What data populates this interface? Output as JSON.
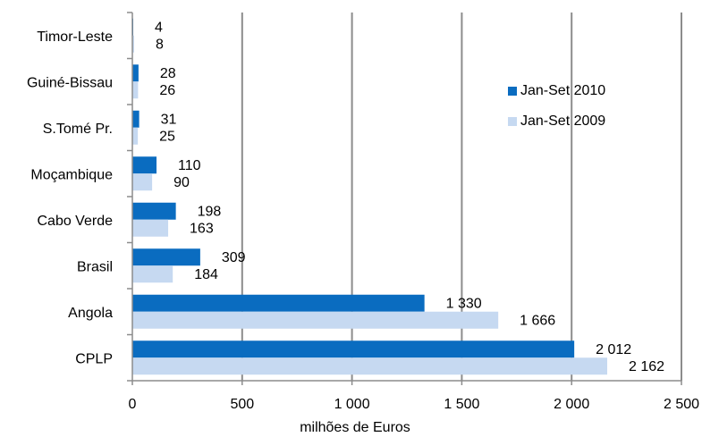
{
  "chart_data": {
    "type": "bar",
    "orientation": "horizontal",
    "categories": [
      "Timor-Leste",
      "Guiné-Bissau",
      "S.Tomé Pr.",
      "Moçambique",
      "Cabo Verde",
      "Brasil",
      "Angola",
      "CPLP"
    ],
    "series": [
      {
        "name": "Jan-Set 2010",
        "color": "#0a6cc0",
        "values": [
          4,
          28,
          31,
          110,
          198,
          309,
          1330,
          2012
        ],
        "labels": [
          "4",
          "28",
          "31",
          "110",
          "198",
          "309",
          "1 330",
          "2 012"
        ]
      },
      {
        "name": "Jan-Set 2009",
        "color": "#c6d9f1",
        "values": [
          8,
          26,
          25,
          90,
          163,
          184,
          1666,
          2162
        ],
        "labels": [
          "8",
          "26",
          "25",
          "90",
          "163",
          "184",
          "1 666",
          "2 162"
        ]
      }
    ],
    "xlabel": "milhões de Euros",
    "xlim": [
      0,
      2500
    ],
    "xticks": [
      0,
      500,
      1000,
      1500,
      2000,
      2500
    ],
    "xtick_labels": [
      "0",
      "500",
      "1 000",
      "1 500",
      "2 000",
      "2 500"
    ],
    "grid": "vertical",
    "legend_position": "right"
  }
}
